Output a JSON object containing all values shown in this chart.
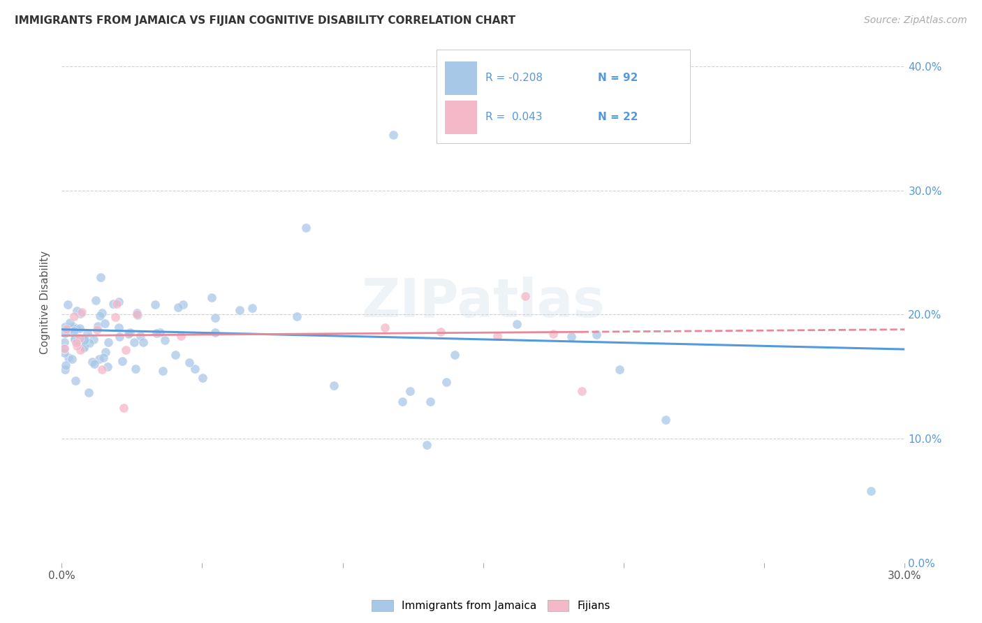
{
  "title": "IMMIGRANTS FROM JAMAICA VS FIJIAN COGNITIVE DISABILITY CORRELATION CHART",
  "source": "Source: ZipAtlas.com",
  "xlim": [
    0.0,
    0.3
  ],
  "ylim": [
    0.0,
    0.42
  ],
  "ylabel": "Cognitive Disability",
  "legend_blue_label": "Immigrants from Jamaica",
  "legend_pink_label": "Fijians",
  "legend_r_blue": "R = -0.208",
  "legend_n_blue": "N = 92",
  "legend_r_pink": "R =  0.043",
  "legend_n_pink": "N = 22",
  "blue_color": "#a8c8e8",
  "pink_color": "#f4b8c8",
  "blue_line_color": "#5599dd",
  "pink_line_color": "#e88899",
  "watermark": "ZIPatlas",
  "title_fontsize": 11,
  "source_fontsize": 10,
  "tick_fontsize": 11,
  "ylabel_fontsize": 11
}
